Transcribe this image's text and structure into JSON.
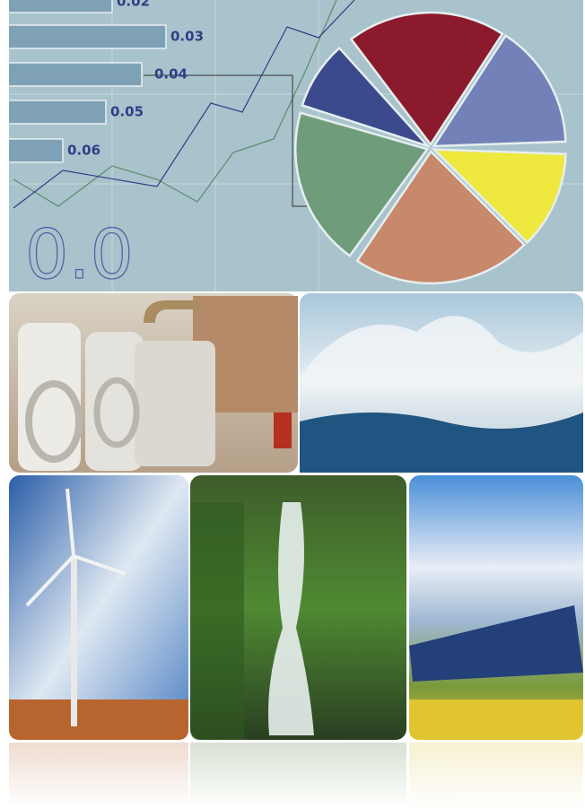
{
  "graphic": {
    "bar_labels": [
      "0.02",
      "0.03",
      "0.04",
      "0.05",
      "0.06"
    ],
    "big_label": "0.0"
  }
}
